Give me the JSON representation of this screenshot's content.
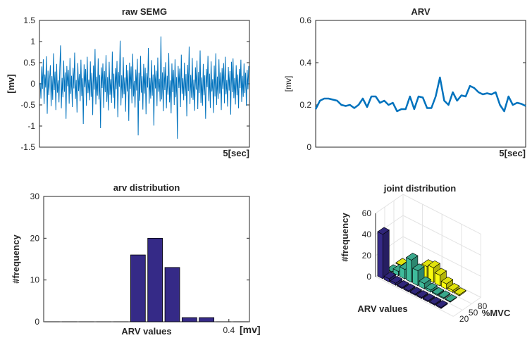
{
  "chart_data": [
    {
      "type": "line",
      "title": "raw SEMG",
      "ylabel": "[mv]",
      "xlabel": "5[sec]",
      "ylim": [
        -1.5,
        1.5
      ],
      "yticks": [
        -1.5,
        -1,
        -0.5,
        0,
        0.5,
        1,
        1.5
      ],
      "ytick_labels": [
        "-1.5",
        "-1",
        "-0.5",
        "0",
        "0.5",
        "1",
        "1.5"
      ],
      "x_range_sec": [
        0,
        5
      ],
      "grid": false,
      "color": "#0072BD",
      "series": [
        {
          "values": [
            0.02,
            -0.35,
            0.41,
            -0.12,
            0.58,
            -0.48,
            0.22,
            -0.09,
            0.65,
            -0.71,
            0.31,
            -0.27,
            0.12,
            0.44,
            -0.53,
            0.18,
            -0.38,
            0.72,
            -0.15,
            0.29,
            -0.62,
            0.47,
            -0.21,
            0.08,
            -0.44,
            0.36,
            0.91,
            -0.58,
            0.14,
            -0.32,
            0.55,
            -0.19,
            0.27,
            -0.83,
            0.42,
            -0.06,
            0.33,
            -0.47,
            0.61,
            -0.24,
            0.19,
            -0.55,
            0.38,
            -0.11,
            0.74,
            -0.36,
            0.09,
            -0.68,
            0.49,
            -0.17,
            0.23,
            -0.41,
            0.57,
            -0.29,
            0.13,
            -0.95,
            0.46,
            -0.08,
            0.35,
            -0.52,
            0.64,
            -0.22,
            0.1,
            -0.39,
            0.53,
            -0.31,
            0.26,
            -0.74,
            0.43,
            -0.14,
            0.82,
            -0.49,
            0.17,
            -0.28,
            0.6,
            -0.37,
            0.21,
            -1.05,
            0.39,
            -0.1,
            0.48,
            -0.57,
            0.3,
            -0.2,
            0.68,
            -0.43,
            0.16,
            -0.63,
            0.52,
            -0.26,
            0.11,
            -0.45,
            0.76,
            -0.33,
            0.24,
            -0.59,
            0.37,
            -0.13,
            0.54,
            -0.79,
            0.28,
            -0.07,
            1.02,
            -0.51,
            0.2,
            -0.34,
            0.63,
            -0.25,
            0.15,
            -0.66,
            0.45,
            -0.18,
            0.32,
            -0.88,
            0.5,
            -0.12,
            0.41,
            -0.46,
            0.71,
            -0.3,
            0.07,
            -0.56,
            0.34,
            -0.16,
            0.59,
            -1.22,
            0.26,
            -0.4,
            0.66,
            -0.21,
            0.18,
            -0.61,
            0.47,
            -0.23,
            0.38,
            -0.72,
            0.25,
            -0.09,
            0.85,
            -0.47,
            0.14,
            -0.35,
            0.56,
            -0.28,
            0.22,
            -0.99,
            0.44,
            -0.11,
            0.31,
            -0.53,
            0.62,
            -0.19,
            0.12,
            -0.42,
            1.12,
            -0.37,
            0.27,
            -0.65,
            0.4,
            -0.15,
            0.51,
            -0.58,
            0.19,
            -0.26,
            0.73,
            -0.44,
            0.08,
            -0.7,
            0.48,
            -0.2,
            0.33,
            -0.5,
            0.58,
            -0.32,
            0.16,
            -1.3,
            0.42,
            -0.1,
            0.36,
            -0.55,
            0.69,
            -0.24,
            0.13,
            -0.39,
            0.5,
            -0.29,
            0.23,
            -0.77,
            0.45,
            -0.17,
            0.88,
            -0.48,
            0.21,
            -0.33,
            0.61,
            -0.38,
            0.1,
            -0.64,
            0.39,
            -0.14,
            0.55,
            -0.6,
            0.28,
            -0.22,
            0.79,
            -0.45,
            0.15,
            -0.52,
            0.47,
            -0.27,
            0.2,
            -0.83,
            0.35,
            -0.08,
            0.66,
            -0.41,
            0.24,
            -0.57,
            0.53,
            -0.18,
            0.11,
            -0.69,
            0.43,
            -0.3,
            0.72,
            -0.5,
            0.17,
            -0.36,
            0.58,
            -0.23,
            0.27,
            -0.62,
            0.37,
            -0.12,
            0.49,
            -0.46,
            0.64,
            -0.25,
            0.09,
            -0.54,
            0.4,
            -0.16,
            0.3,
            -0.73,
            0.52,
            -0.2,
            0.6,
            -0.34,
            0.14,
            -0.49,
            0.44,
            -0.27,
            0.22,
            -0.58,
            0.35,
            -0.1,
            0.57,
            -0.43,
            0.19,
            -0.31,
            0.48,
            -0.22,
            0.26,
            -0.52,
            0.33,
            -0.13,
            0.42
          ]
        }
      ]
    },
    {
      "type": "line",
      "title": "ARV",
      "ylabel": "[mv]",
      "xlabel": "5[sec]",
      "ylim": [
        0,
        0.6
      ],
      "yticks": [
        0,
        0.2,
        0.4,
        0.6
      ],
      "ytick_labels": [
        "0",
        "0.2",
        "0.4",
        "0.6"
      ],
      "x_range_sec": [
        0,
        5
      ],
      "grid": false,
      "color": "#0072BD",
      "series": [
        {
          "values": [
            0.18,
            0.22,
            0.23,
            0.23,
            0.225,
            0.22,
            0.2,
            0.195,
            0.2,
            0.185,
            0.2,
            0.23,
            0.19,
            0.24,
            0.24,
            0.21,
            0.22,
            0.2,
            0.21,
            0.17,
            0.18,
            0.18,
            0.24,
            0.18,
            0.24,
            0.235,
            0.185,
            0.185,
            0.24,
            0.33,
            0.22,
            0.2,
            0.26,
            0.22,
            0.245,
            0.24,
            0.29,
            0.28,
            0.26,
            0.25,
            0.255,
            0.25,
            0.26,
            0.2,
            0.17,
            0.24,
            0.2,
            0.21,
            0.205,
            0.195
          ]
        }
      ]
    },
    {
      "type": "bar",
      "title": "arv distribution",
      "ylabel": "#frequency",
      "xlabel": "ARV values",
      "xunit_label": "[mv]",
      "ylim": [
        0,
        30
      ],
      "yticks": [
        0,
        10,
        20,
        30
      ],
      "ytick_labels": [
        "0",
        "10",
        "20",
        "30"
      ],
      "xtick_labels": [
        "0.4"
      ],
      "grid": false,
      "color": "#352A87",
      "values": [
        0,
        0,
        0,
        0,
        0,
        16,
        20,
        13,
        1,
        1,
        0,
        0
      ]
    },
    {
      "type": "bar3d",
      "title": "joint distribution",
      "zlabel": "#frequency",
      "xlabel": "ARV values",
      "ylabel": "%MVC",
      "zlim": [
        0,
        60
      ],
      "zticks": [
        0,
        20,
        40,
        60
      ],
      "ztick_labels": [
        "0",
        "20",
        "40",
        "60"
      ],
      "ytick_labels": [
        "20",
        "50",
        "80"
      ],
      "grid": true,
      "colors": [
        "#352A87",
        "#3FBB9B",
        "#F9FB0E"
      ],
      "series": [
        {
          "values": [
            42,
            3,
            2,
            1,
            1,
            1,
            1,
            1,
            1,
            1
          ]
        },
        {
          "values": [
            0,
            4,
            9,
            21,
            14,
            5,
            2,
            1,
            1,
            0
          ]
        },
        {
          "values": [
            0,
            0,
            2,
            4,
            12,
            14,
            10,
            5,
            2,
            1
          ]
        }
      ]
    }
  ]
}
